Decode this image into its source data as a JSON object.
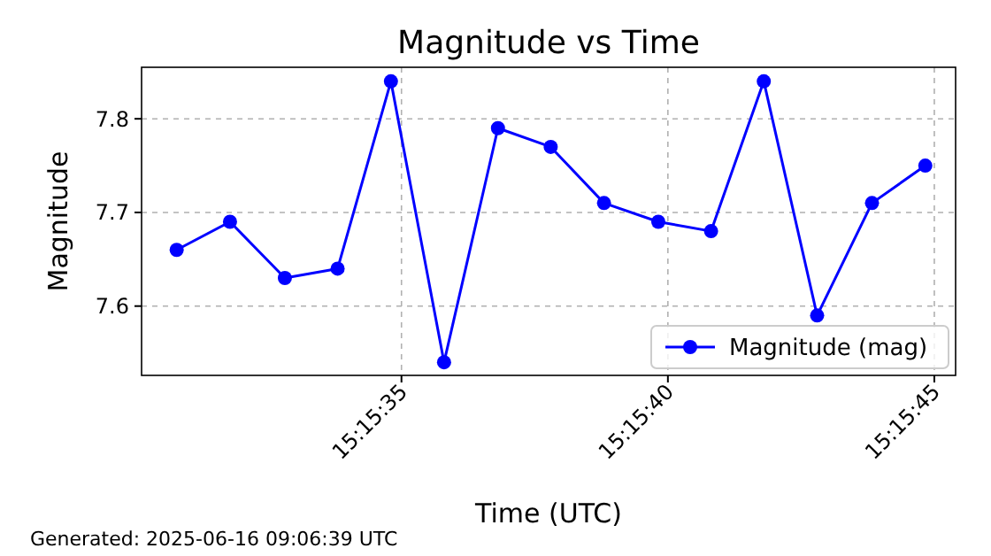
{
  "chart_data": {
    "type": "line",
    "title": "Magnitude vs Time",
    "xlabel": "Time (UTC)",
    "ylabel": "Magnitude",
    "x": [
      15.25855,
      15.258828,
      15.259114,
      15.259389,
      15.259667,
      15.259944,
      15.260225,
      15.2605,
      15.260778,
      15.261061,
      15.261336,
      15.261611,
      15.261889,
      15.262175,
      15.262453
    ],
    "series": [
      {
        "name": "Magnitude (mag)",
        "color": "#0000ff",
        "values": [
          7.66,
          7.69,
          7.63,
          7.64,
          7.84,
          7.54,
          7.79,
          7.77,
          7.71,
          7.69,
          7.68,
          7.84,
          7.59,
          7.71,
          7.75
        ]
      }
    ],
    "xlim": [
      15.258367,
      15.262611
    ],
    "xticks": [
      {
        "value": 15.259722,
        "label": "15:15:35"
      },
      {
        "value": 15.261111,
        "label": "15:15:40"
      },
      {
        "value": 15.2625,
        "label": "15:15:45"
      }
    ],
    "ylim": [
      7.526,
      7.855
    ],
    "yticks": [
      7.6,
      7.7,
      7.8
    ],
    "grid": true,
    "legend": "bottom right",
    "marker": "circle",
    "line_style": "solid",
    "annotations": [
      "Generated: 2025-06-16 09:06:39 UTC"
    ]
  }
}
